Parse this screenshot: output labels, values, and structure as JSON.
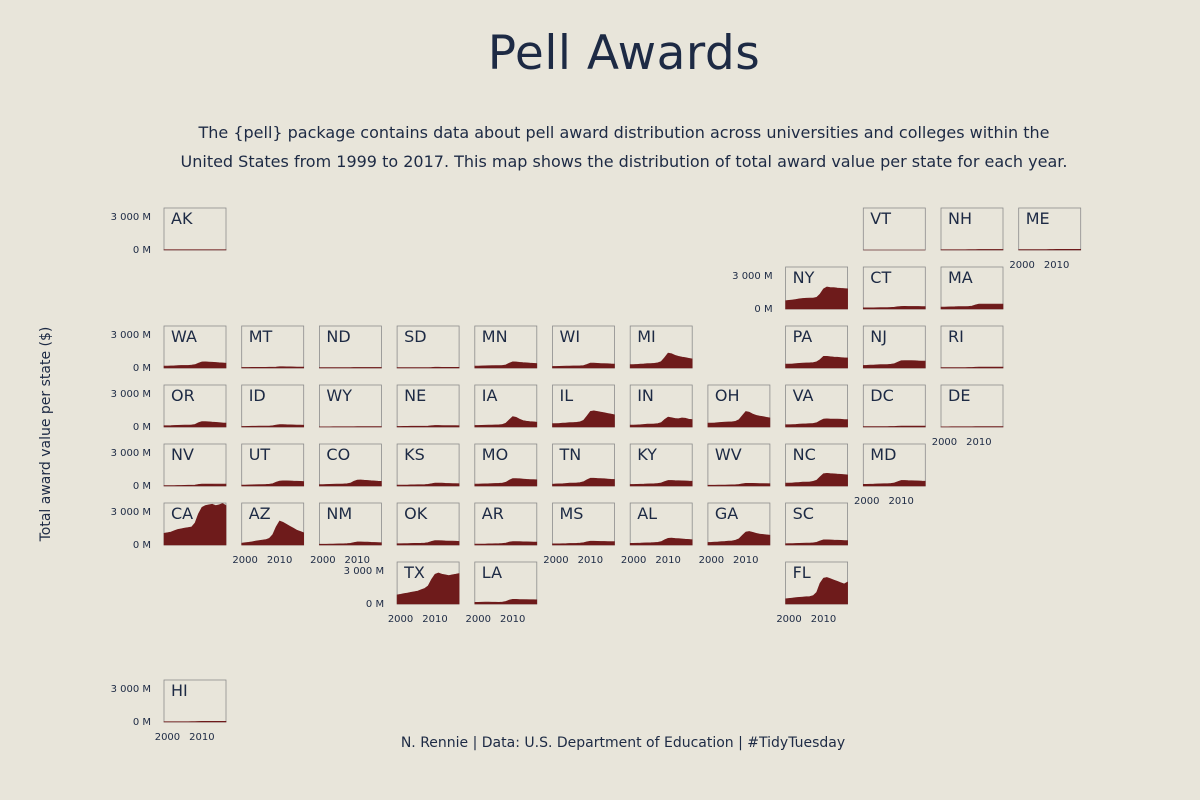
{
  "title": "Pell Awards",
  "subtitle": "The {pell} package contains data about pell award distribution across universities and colleges within the United States from 1999 to 2017. This map shows the distribution of total award value per state for each year.",
  "caption": "N. Rennie | Data: U.S. Department of Education | #TidyTuesday",
  "colors": {
    "background": "#e8e5da",
    "fill": "#6e1b1b",
    "text": "#1d2a44",
    "panel_border": "#8c8c8c"
  },
  "chart_data": {
    "type": "area",
    "layout": "small multiples arranged as a tile map of US states",
    "x_range": [
      1999,
      2017
    ],
    "x_ticks": [
      "2000",
      "2010"
    ],
    "y_range_millions": [
      0,
      3000
    ],
    "y_ticks": [
      "0 M",
      "3 000 M"
    ],
    "ylabel": "Total award value per state ($)",
    "xlabel": "",
    "x": [
      1999,
      2000,
      2001,
      2002,
      2003,
      2004,
      2005,
      2006,
      2007,
      2008,
      2009,
      2010,
      2011,
      2012,
      2013,
      2014,
      2015,
      2016,
      2017
    ],
    "states": [
      {
        "name": "AK",
        "values": [
          20,
          20,
          20,
          20,
          20,
          20,
          20,
          20,
          20,
          20,
          20,
          20,
          20,
          20,
          20,
          20,
          20,
          20,
          20
        ]
      },
      {
        "name": "VT",
        "values": [
          0,
          0,
          0,
          0,
          0,
          0,
          0,
          0,
          0,
          0,
          0,
          0,
          0,
          0,
          0,
          0,
          0,
          0,
          0
        ]
      },
      {
        "name": "NH",
        "values": [
          20,
          20,
          20,
          25,
          25,
          25,
          25,
          25,
          30,
          35,
          40,
          45,
          45,
          45,
          45,
          45,
          45,
          45,
          45
        ]
      },
      {
        "name": "ME",
        "values": [
          30,
          30,
          30,
          35,
          35,
          35,
          35,
          35,
          40,
          45,
          50,
          55,
          55,
          55,
          55,
          55,
          55,
          55,
          55
        ]
      },
      {
        "name": "NY",
        "values": [
          640,
          670,
          700,
          740,
          790,
          820,
          830,
          840,
          850,
          900,
          1150,
          1550,
          1700,
          1650,
          1650,
          1620,
          1600,
          1580,
          1560
        ]
      },
      {
        "name": "CT",
        "values": [
          90,
          90,
          90,
          95,
          100,
          105,
          105,
          110,
          120,
          140,
          180,
          200,
          205,
          200,
          200,
          200,
          200,
          195,
          195
        ]
      },
      {
        "name": "MA",
        "values": [
          150,
          150,
          160,
          170,
          180,
          190,
          190,
          190,
          200,
          230,
          320,
          380,
          380,
          380,
          380,
          380,
          380,
          375,
          375
        ]
      },
      {
        "name": "WA",
        "values": [
          150,
          150,
          160,
          170,
          190,
          200,
          200,
          200,
          220,
          260,
          380,
          470,
          480,
          460,
          450,
          430,
          410,
          390,
          380
        ]
      },
      {
        "name": "MT",
        "values": [
          50,
          50,
          50,
          55,
          55,
          55,
          55,
          55,
          60,
          65,
          80,
          100,
          100,
          95,
          90,
          85,
          80,
          75,
          75
        ]
      },
      {
        "name": "ND",
        "values": [
          30,
          30,
          30,
          30,
          35,
          35,
          35,
          35,
          35,
          35,
          45,
          50,
          50,
          50,
          45,
          45,
          45,
          45,
          45
        ]
      },
      {
        "name": "SD",
        "values": [
          30,
          30,
          30,
          30,
          35,
          35,
          35,
          35,
          35,
          40,
          50,
          60,
          60,
          55,
          55,
          55,
          55,
          55,
          55
        ]
      },
      {
        "name": "MN",
        "values": [
          150,
          150,
          160,
          170,
          180,
          185,
          190,
          190,
          200,
          240,
          380,
          480,
          470,
          440,
          420,
          400,
          380,
          360,
          350
        ]
      },
      {
        "name": "WI",
        "values": [
          120,
          120,
          130,
          140,
          150,
          155,
          160,
          160,
          170,
          190,
          280,
          380,
          380,
          360,
          350,
          340,
          330,
          320,
          310
        ]
      },
      {
        "name": "MI",
        "values": [
          260,
          270,
          280,
          300,
          320,
          340,
          350,
          360,
          400,
          500,
          800,
          1150,
          1100,
          980,
          900,
          850,
          800,
          750,
          700
        ]
      },
      {
        "name": "PA",
        "values": [
          300,
          310,
          320,
          340,
          360,
          380,
          390,
          400,
          420,
          480,
          650,
          900,
          900,
          870,
          850,
          830,
          810,
          790,
          780
        ]
      },
      {
        "name": "NJ",
        "values": [
          200,
          210,
          220,
          230,
          250,
          260,
          265,
          270,
          290,
          330,
          450,
          560,
          570,
          570,
          570,
          560,
          550,
          540,
          530
        ]
      },
      {
        "name": "RI",
        "values": [
          30,
          30,
          30,
          35,
          35,
          40,
          40,
          40,
          45,
          50,
          65,
          80,
          80,
          80,
          80,
          80,
          80,
          80,
          80
        ]
      },
      {
        "name": "OR",
        "values": [
          100,
          100,
          110,
          120,
          130,
          140,
          145,
          150,
          160,
          200,
          330,
          420,
          420,
          400,
          380,
          360,
          340,
          320,
          310
        ]
      },
      {
        "name": "ID",
        "values": [
          50,
          50,
          55,
          60,
          65,
          70,
          70,
          70,
          80,
          100,
          150,
          190,
          190,
          180,
          170,
          160,
          150,
          145,
          140
        ]
      },
      {
        "name": "WY",
        "values": [
          15,
          15,
          15,
          15,
          20,
          20,
          20,
          20,
          20,
          20,
          25,
          30,
          30,
          30,
          30,
          30,
          30,
          30,
          30
        ]
      },
      {
        "name": "NE",
        "values": [
          50,
          50,
          55,
          55,
          60,
          60,
          60,
          60,
          65,
          75,
          100,
          120,
          120,
          115,
          110,
          110,
          105,
          105,
          100
        ]
      },
      {
        "name": "IA",
        "values": [
          120,
          120,
          130,
          140,
          150,
          155,
          160,
          170,
          200,
          300,
          550,
          800,
          750,
          600,
          500,
          450,
          420,
          400,
          380
        ]
      },
      {
        "name": "IL",
        "values": [
          260,
          270,
          280,
          300,
          320,
          340,
          350,
          360,
          400,
          520,
          850,
          1200,
          1250,
          1200,
          1150,
          1100,
          1050,
          1000,
          950
        ]
      },
      {
        "name": "IN",
        "values": [
          150,
          150,
          160,
          180,
          200,
          220,
          230,
          240,
          260,
          340,
          580,
          760,
          720,
          660,
          640,
          700,
          680,
          600,
          580
        ]
      },
      {
        "name": "OH",
        "values": [
          300,
          310,
          320,
          340,
          360,
          380,
          390,
          400,
          440,
          560,
          880,
          1200,
          1150,
          1000,
          900,
          850,
          800,
          750,
          700
        ]
      },
      {
        "name": "VA",
        "values": [
          180,
          180,
          190,
          200,
          220,
          240,
          250,
          260,
          280,
          330,
          480,
          620,
          630,
          620,
          620,
          610,
          600,
          580,
          570
        ]
      },
      {
        "name": "DC",
        "values": [
          30,
          30,
          30,
          35,
          35,
          40,
          40,
          40,
          45,
          50,
          65,
          80,
          80,
          80,
          80,
          80,
          80,
          80,
          80
        ]
      },
      {
        "name": "DE",
        "values": [
          15,
          15,
          15,
          20,
          20,
          20,
          20,
          20,
          20,
          25,
          30,
          35,
          35,
          35,
          35,
          35,
          35,
          35,
          35
        ]
      },
      {
        "name": "NV",
        "values": [
          30,
          30,
          35,
          40,
          45,
          50,
          55,
          60,
          65,
          80,
          120,
          150,
          155,
          155,
          155,
          150,
          150,
          145,
          145
        ]
      },
      {
        "name": "UT",
        "values": [
          80,
          80,
          85,
          90,
          100,
          110,
          115,
          120,
          140,
          180,
          300,
          380,
          400,
          400,
          390,
          380,
          370,
          360,
          350
        ]
      },
      {
        "name": "CO",
        "values": [
          110,
          110,
          120,
          130,
          140,
          150,
          155,
          160,
          180,
          220,
          360,
          460,
          470,
          450,
          430,
          410,
          390,
          370,
          360
        ]
      },
      {
        "name": "KS",
        "values": [
          70,
          70,
          75,
          80,
          90,
          95,
          100,
          100,
          110,
          130,
          180,
          230,
          230,
          220,
          210,
          200,
          190,
          185,
          180
        ]
      },
      {
        "name": "MO",
        "values": [
          150,
          150,
          160,
          170,
          180,
          190,
          200,
          210,
          230,
          290,
          450,
          580,
          580,
          560,
          540,
          520,
          500,
          490,
          480
        ]
      },
      {
        "name": "TN",
        "values": [
          150,
          160,
          170,
          180,
          200,
          220,
          230,
          240,
          270,
          330,
          480,
          600,
          600,
          590,
          580,
          560,
          540,
          520,
          510
        ]
      },
      {
        "name": "KY",
        "values": [
          120,
          120,
          130,
          140,
          150,
          160,
          170,
          180,
          200,
          240,
          350,
          430,
          430,
          420,
          410,
          400,
          390,
          380,
          370
        ]
      },
      {
        "name": "WV",
        "values": [
          60,
          60,
          65,
          70,
          75,
          80,
          85,
          90,
          100,
          120,
          170,
          210,
          210,
          205,
          200,
          195,
          190,
          185,
          180
        ]
      },
      {
        "name": "NC",
        "values": [
          220,
          230,
          240,
          260,
          280,
          300,
          310,
          320,
          360,
          450,
          700,
          950,
          980,
          960,
          940,
          920,
          900,
          880,
          860
        ]
      },
      {
        "name": "MD",
        "values": [
          130,
          130,
          140,
          150,
          160,
          170,
          175,
          180,
          200,
          240,
          340,
          430,
          430,
          420,
          410,
          400,
          390,
          380,
          370
        ]
      },
      {
        "name": "CA",
        "values": [
          900,
          950,
          1000,
          1100,
          1200,
          1250,
          1300,
          1350,
          1400,
          1700,
          2400,
          2900,
          3050,
          3100,
          3150,
          3050,
          3100,
          3200,
          3050
        ]
      },
      {
        "name": "AZ",
        "values": [
          150,
          180,
          210,
          250,
          300,
          340,
          380,
          420,
          520,
          800,
          1400,
          1850,
          1750,
          1600,
          1450,
          1300,
          1150,
          1050,
          950
        ]
      },
      {
        "name": "NM",
        "values": [
          60,
          60,
          65,
          70,
          80,
          85,
          90,
          95,
          105,
          130,
          190,
          240,
          240,
          230,
          220,
          210,
          200,
          190,
          180
        ]
      },
      {
        "name": "OK",
        "values": [
          100,
          100,
          105,
          110,
          120,
          130,
          135,
          140,
          155,
          190,
          280,
          340,
          340,
          330,
          320,
          310,
          300,
          290,
          280
        ]
      },
      {
        "name": "AR",
        "values": [
          70,
          70,
          75,
          80,
          90,
          95,
          100,
          105,
          120,
          150,
          220,
          270,
          270,
          260,
          250,
          245,
          240,
          235,
          230
        ]
      },
      {
        "name": "MS",
        "values": [
          90,
          90,
          95,
          100,
          110,
          120,
          125,
          130,
          145,
          180,
          250,
          290,
          290,
          285,
          280,
          275,
          270,
          265,
          260
        ]
      },
      {
        "name": "AL",
        "values": [
          130,
          130,
          140,
          150,
          160,
          170,
          180,
          190,
          210,
          260,
          400,
          520,
          530,
          510,
          490,
          470,
          450,
          430,
          420
        ]
      },
      {
        "name": "GA",
        "values": [
          200,
          210,
          220,
          240,
          260,
          280,
          300,
          320,
          370,
          480,
          750,
          1000,
          1050,
          980,
          900,
          850,
          820,
          790,
          760
        ]
      },
      {
        "name": "SC",
        "values": [
          100,
          105,
          110,
          120,
          130,
          140,
          145,
          150,
          170,
          210,
          320,
          400,
          400,
          390,
          380,
          370,
          360,
          350,
          340
        ]
      },
      {
        "name": "TX",
        "values": [
          700,
          750,
          800,
          850,
          900,
          950,
          1000,
          1100,
          1200,
          1400,
          1900,
          2300,
          2400,
          2300,
          2250,
          2200,
          2250,
          2300,
          2350
        ]
      },
      {
        "name": "LA",
        "values": [
          130,
          130,
          140,
          150,
          150,
          140,
          140,
          130,
          150,
          200,
          300,
          360,
          360,
          350,
          345,
          340,
          335,
          330,
          325
        ]
      },
      {
        "name": "FL",
        "values": [
          400,
          430,
          460,
          490,
          520,
          540,
          560,
          580,
          650,
          900,
          1600,
          2000,
          2050,
          1950,
          1850,
          1750,
          1650,
          1550,
          1700
        ]
      },
      {
        "name": "HI",
        "values": [
          20,
          20,
          20,
          20,
          25,
          25,
          25,
          25,
          30,
          35,
          45,
          55,
          55,
          55,
          55,
          55,
          55,
          55,
          55
        ]
      }
    ]
  }
}
